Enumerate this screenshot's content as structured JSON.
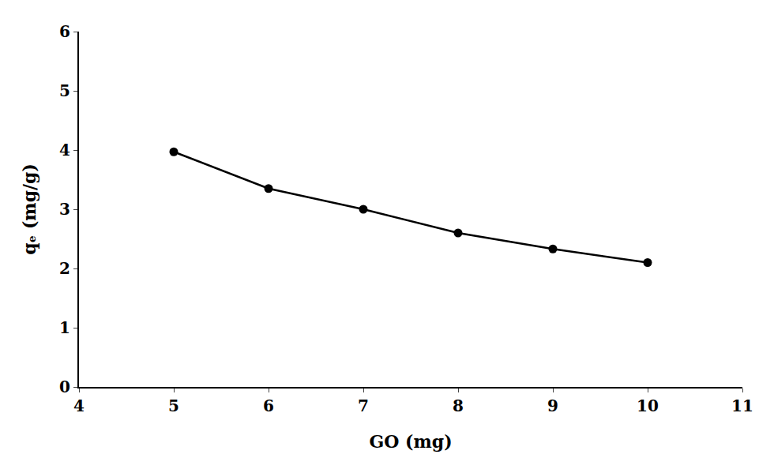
{
  "chart_data": {
    "type": "line",
    "x": [
      5,
      6,
      7,
      8,
      9,
      10
    ],
    "values": [
      3.97,
      3.35,
      3.0,
      2.6,
      2.33,
      2.1
    ],
    "xlabel": "GO (mg)",
    "ylabel": "qₑ (mg/g)",
    "xlim": [
      4,
      11
    ],
    "ylim": [
      0,
      6
    ],
    "xticks": [
      4,
      5,
      6,
      7,
      8,
      9,
      10,
      11
    ],
    "yticks": [
      0,
      1,
      2,
      3,
      4,
      5,
      6
    ],
    "color": "#000000",
    "marker": "circle",
    "line_style": "solid",
    "grid": false
  }
}
